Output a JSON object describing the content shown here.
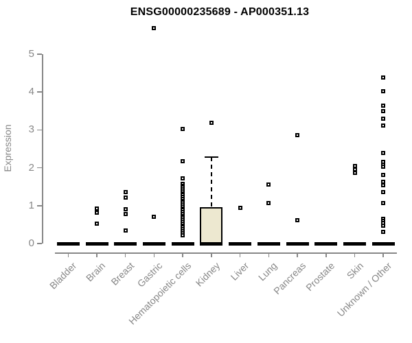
{
  "chart_data": {
    "type": "boxplot",
    "title": "ENSG00000235689 - AP000351.13",
    "ylabel": "Expression",
    "xlabel": "",
    "ylim": [
      0,
      5
    ],
    "yticks": [
      0,
      1,
      2,
      3,
      4,
      5
    ],
    "grid": false,
    "legend": false,
    "categories": [
      "Bladder",
      "Brain",
      "Breast",
      "Gastric",
      "Hematopoietic cells",
      "Kidney",
      "Liver",
      "Lung",
      "Pancreas",
      "Prostate",
      "Skin",
      "Unknown / Other"
    ],
    "boxes": [
      {
        "category": "Bladder",
        "q1": 0,
        "median": 0,
        "q3": 0,
        "whisker_low": 0,
        "whisker_high": 0,
        "outliers": []
      },
      {
        "category": "Brain",
        "q1": 0,
        "median": 0,
        "q3": 0,
        "whisker_low": 0,
        "whisker_high": 0,
        "outliers": [
          0.92,
          0.82,
          0.52
        ]
      },
      {
        "category": "Breast",
        "q1": 0,
        "median": 0,
        "q3": 0,
        "whisker_low": 0,
        "whisker_high": 0,
        "outliers": [
          1.35,
          1.22,
          0.91,
          0.78,
          0.34
        ]
      },
      {
        "category": "Gastric",
        "q1": 0,
        "median": 0,
        "q3": 0,
        "whisker_low": 0,
        "whisker_high": 0,
        "outliers": [
          5.69,
          0.71
        ]
      },
      {
        "category": "Hematopoietic cells",
        "q1": 0,
        "median": 0,
        "q3": 0,
        "whisker_low": 0,
        "whisker_high": 0,
        "outliers": [
          3.02,
          2.17,
          1.73,
          1.58,
          1.53,
          1.48,
          1.43,
          1.38,
          1.33,
          1.28,
          1.23,
          1.18,
          1.13,
          1.08,
          1.03,
          0.98,
          0.93,
          0.88,
          0.83,
          0.78,
          0.73,
          0.68,
          0.63,
          0.58,
          0.53,
          0.48,
          0.43,
          0.38,
          0.33,
          0.27,
          0.21
        ]
      },
      {
        "category": "Kidney",
        "q1": 0,
        "median": 0,
        "q3": 0.96,
        "whisker_low": 0,
        "whisker_high": 2.29,
        "outliers": [
          3.18
        ]
      },
      {
        "category": "Liver",
        "q1": 0,
        "median": 0,
        "q3": 0,
        "whisker_low": 0,
        "whisker_high": 0,
        "outliers": [
          0.95
        ]
      },
      {
        "category": "Lung",
        "q1": 0,
        "median": 0,
        "q3": 0,
        "whisker_low": 0,
        "whisker_high": 0,
        "outliers": [
          1.55,
          1.07
        ]
      },
      {
        "category": "Pancreas",
        "q1": 0,
        "median": 0,
        "q3": 0,
        "whisker_low": 0,
        "whisker_high": 0,
        "outliers": [
          2.87,
          0.62
        ]
      },
      {
        "category": "Prostate",
        "q1": 0,
        "median": 0,
        "q3": 0,
        "whisker_low": 0,
        "whisker_high": 0,
        "outliers": []
      },
      {
        "category": "Skin",
        "q1": 0,
        "median": 0,
        "q3": 0,
        "whisker_low": 0,
        "whisker_high": 0,
        "outliers": [
          2.05,
          1.96,
          1.86
        ]
      },
      {
        "category": "Unknown / Other",
        "q1": 0,
        "median": 0,
        "q3": 0,
        "whisker_low": 0,
        "whisker_high": 0,
        "outliers": [
          4.38,
          4.03,
          3.65,
          3.5,
          3.29,
          3.11,
          2.39,
          2.16,
          2.08,
          2.02,
          1.82,
          1.63,
          1.54,
          1.36,
          1.07,
          0.66,
          0.6,
          0.54,
          0.48,
          0.3
        ]
      }
    ],
    "colors": {
      "box_fill": "#EDE8D0",
      "box_border": "#000000",
      "median": "#000000",
      "outlier": "#000000",
      "axis": "#878787",
      "title": "#000000",
      "background": "#ffffff"
    }
  }
}
